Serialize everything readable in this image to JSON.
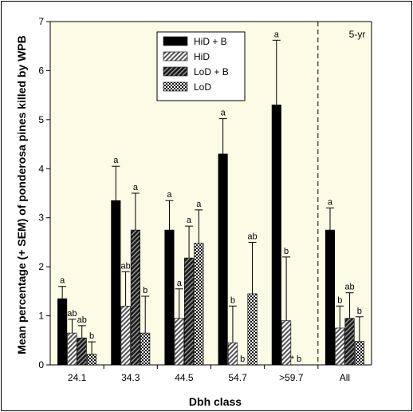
{
  "chart_data": {
    "type": "bar",
    "ylabel": "Mean percentage (+ SEM) of ponderosa pines killed by WPB",
    "xlabel": "Dbh class",
    "categories": [
      "24.1",
      "34.3",
      "44.5",
      "54.7",
      ">59.7",
      "All"
    ],
    "ylim": [
      0,
      7
    ],
    "yticks": [
      0,
      1,
      2,
      3,
      4,
      5,
      6,
      7
    ],
    "plot_background": "#fcfce6",
    "period_label": "5-yr",
    "legend_position": "top-center",
    "series": [
      {
        "name": "HiD + B",
        "pattern": "solid-black",
        "values": [
          1.35,
          3.35,
          2.75,
          4.3,
          5.3,
          2.75
        ],
        "sem": [
          0.25,
          0.7,
          0.6,
          0.72,
          1.32,
          0.45
        ],
        "letters": [
          "a",
          "a",
          "a",
          "a",
          "a",
          "a"
        ]
      },
      {
        "name": "HiD",
        "pattern": "diagonal-hatch",
        "values": [
          0.65,
          1.2,
          0.95,
          0.45,
          0.9,
          0.75
        ],
        "sem": [
          0.28,
          0.7,
          0.6,
          0.75,
          1.3,
          0.45
        ],
        "letters": [
          "ab",
          "ab",
          "a",
          "b",
          "b",
          "b"
        ]
      },
      {
        "name": "LoD + B",
        "pattern": "dark-hatch",
        "values": [
          0.55,
          2.75,
          2.18,
          0,
          0,
          0.95
        ],
        "sem": [
          0.25,
          0.75,
          0.65,
          0,
          0,
          0.52
        ],
        "letters": [
          "ab",
          "a",
          "a",
          "b",
          "* b",
          "ab"
        ]
      },
      {
        "name": "LoD",
        "pattern": "checker",
        "values": [
          0.22,
          0.65,
          2.48,
          1.45,
          null,
          0.48
        ],
        "sem": [
          0.25,
          0.75,
          0.68,
          1.05,
          null,
          0.5
        ],
        "letters": [
          "b",
          "b",
          "a",
          "ab",
          null,
          "b"
        ]
      }
    ]
  }
}
